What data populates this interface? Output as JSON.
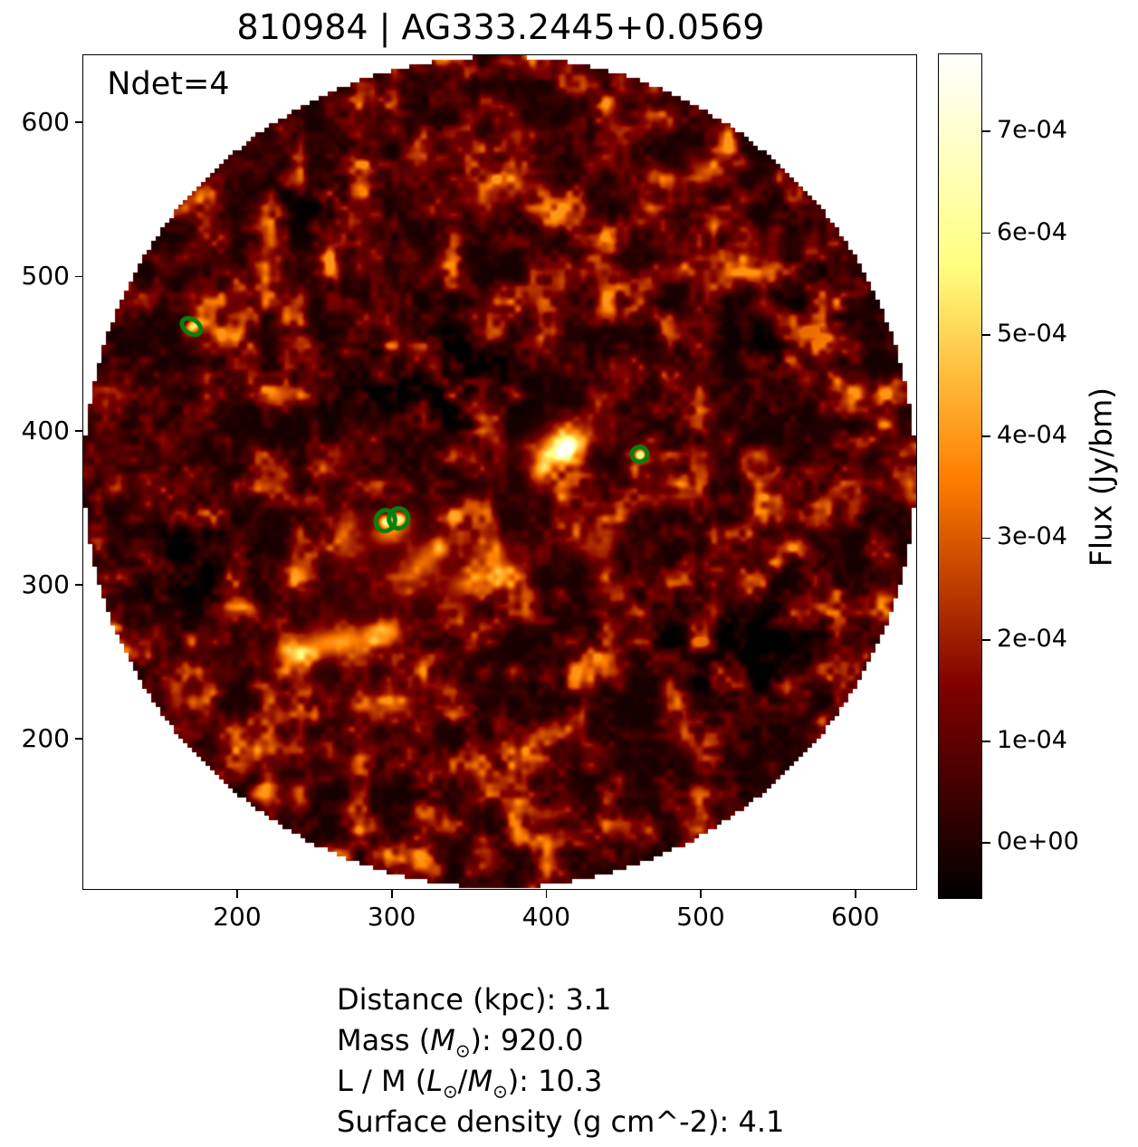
{
  "figure": {
    "background": "#ffffff",
    "text_color": "#000000"
  },
  "chart_data": {
    "type": "heatmap",
    "title": "810984 | AG333.2445+0.0569",
    "annotation": "Ndet=4",
    "xlabel": "",
    "ylabel": "",
    "xlim": [
      101,
      640
    ],
    "ylim": [
      102,
      643
    ],
    "xticks": [
      200,
      300,
      400,
      500,
      600
    ],
    "yticks": [
      200,
      300,
      400,
      500,
      600
    ],
    "grid": false,
    "colormap": "afmhot",
    "field_of_view": {
      "shape": "circle",
      "center_x": 370.5,
      "center_y": 372.5,
      "radius": 269,
      "outside_color": "#ffffff"
    },
    "colorbar": {
      "label": "Flux (Jy/bm)",
      "vmin": -5.5e-05,
      "vmax": 0.000775,
      "ticks": [
        {
          "value": 0,
          "label": "0e+00"
        },
        {
          "value": 0.0001,
          "label": "1e-04"
        },
        {
          "value": 0.0002,
          "label": "2e-04"
        },
        {
          "value": 0.0003,
          "label": "3e-04"
        },
        {
          "value": 0.0004,
          "label": "4e-04"
        },
        {
          "value": 0.0005,
          "label": "5e-04"
        },
        {
          "value": 0.0006,
          "label": "6e-04"
        },
        {
          "value": 0.0007,
          "label": "7e-04"
        }
      ]
    },
    "detections": {
      "count": 4,
      "color": "#0a7e0f",
      "ellipses": [
        {
          "x": 171,
          "y": 467,
          "rx": 6.8,
          "ry": 4.6,
          "angle": -35
        },
        {
          "x": 296.5,
          "y": 341,
          "rx": 6.2,
          "ry": 6.8,
          "angle": -15
        },
        {
          "x": 305,
          "y": 342.5,
          "rx": 6.2,
          "ry": 6.5,
          "angle": -15
        },
        {
          "x": 461,
          "y": 384,
          "rx": 5.0,
          "ry": 4.8,
          "angle": 0
        }
      ]
    },
    "bright_regions": [
      {
        "x": 410,
        "y": 392,
        "sx": 14,
        "sy": 8,
        "rot": -25,
        "a": 0.5
      },
      {
        "x": 414,
        "y": 389,
        "sx": 6,
        "sy": 4,
        "rot": -25,
        "a": 0.42
      },
      {
        "x": 398,
        "y": 377,
        "sx": 7,
        "sy": 4.5,
        "rot": -65,
        "a": 0.26
      },
      {
        "x": 301,
        "y": 335,
        "sx": 10,
        "sy": 6,
        "rot": -30,
        "a": 0.42
      },
      {
        "x": 296.5,
        "y": 341,
        "sx": 3,
        "sy": 2.6,
        "rot": 0,
        "a": 0.55
      },
      {
        "x": 305,
        "y": 342.5,
        "sx": 3,
        "sy": 2.6,
        "rot": 0,
        "a": 0.55
      },
      {
        "x": 171,
        "y": 467,
        "sx": 4.5,
        "sy": 2.8,
        "rot": -35,
        "a": 0.5
      },
      {
        "x": 461,
        "y": 384,
        "sx": 2.4,
        "sy": 2.1,
        "rot": 0,
        "a": 0.6
      },
      {
        "x": 322,
        "y": 316,
        "sx": 13,
        "sy": 8,
        "rot": -35,
        "a": 0.3
      },
      {
        "x": 347,
        "y": 301,
        "sx": 11,
        "sy": 7,
        "rot": -20,
        "a": 0.28
      },
      {
        "x": 262,
        "y": 262,
        "sx": 20,
        "sy": 7,
        "rot": -8,
        "a": 0.45
      },
      {
        "x": 237,
        "y": 254,
        "sx": 8,
        "sy": 6,
        "rot": 25,
        "a": 0.32
      },
      {
        "x": 297,
        "y": 268,
        "sx": 8,
        "sy": 5,
        "rot": 0,
        "a": 0.3
      },
      {
        "x": 374,
        "y": 311,
        "sx": 9,
        "sy": 6,
        "rot": 20,
        "a": 0.22
      },
      {
        "x": 430,
        "y": 326,
        "sx": 10,
        "sy": 7,
        "rot": 0,
        "a": 0.24
      },
      {
        "x": 356,
        "y": 549,
        "sx": 11,
        "sy": 6,
        "rot": 25,
        "a": 0.2
      },
      {
        "x": 391,
        "y": 558,
        "sx": 8,
        "sy": 5,
        "rot": 0,
        "a": 0.18
      },
      {
        "x": 503,
        "y": 571,
        "sx": 9,
        "sy": 5,
        "rot": 15,
        "a": 0.22
      },
      {
        "x": 272,
        "y": 330,
        "sx": 8,
        "sy": 12,
        "rot": 10,
        "a": 0.22
      },
      {
        "x": 300,
        "y": 295,
        "sx": 50,
        "sy": 32,
        "rot": -30,
        "a": 0.07
      },
      {
        "x": 545,
        "y": 477,
        "sx": 8,
        "sy": 5,
        "rot": 0,
        "a": 0.18
      }
    ],
    "dark_regions": [
      {
        "x": 330,
        "y": 432,
        "sx": 34,
        "sy": 22,
        "rot": -10,
        "a": -0.13
      },
      {
        "x": 522,
        "y": 256,
        "sx": 34,
        "sy": 24,
        "rot": 0,
        "a": -0.1
      },
      {
        "x": 562,
        "y": 466,
        "sx": 24,
        "sy": 17,
        "rot": 0,
        "a": -0.09
      },
      {
        "x": 170,
        "y": 316,
        "sx": 22,
        "sy": 20,
        "rot": 0,
        "a": -0.1
      },
      {
        "x": 255,
        "y": 552,
        "sx": 22,
        "sy": 16,
        "rot": 0,
        "a": -0.07
      }
    ],
    "noise": {
      "seed": 20240613,
      "octave_cells": [
        34,
        17,
        8
      ],
      "octave_weights": [
        0.45,
        0.33,
        0.22
      ],
      "floor": 0.045,
      "gain": 0.5,
      "offset": 0.18,
      "span": 0.64,
      "power": 2.1
    }
  },
  "stats": {
    "lines": [
      {
        "segments": [
          {
            "t": "Distance (kpc): 3.1"
          }
        ]
      },
      {
        "segments": [
          {
            "t": "Mass ("
          },
          {
            "t": "M",
            "i": true
          },
          {
            "t": "⊙",
            "sub": true
          },
          {
            "t": "): 920.0"
          }
        ]
      },
      {
        "segments": [
          {
            "t": "L / M ("
          },
          {
            "t": "L",
            "i": true
          },
          {
            "t": "⊙",
            "sub": true
          },
          {
            "t": "/"
          },
          {
            "t": "M",
            "i": true
          },
          {
            "t": "⊙",
            "sub": true
          },
          {
            "t": "): 10.3"
          }
        ]
      },
      {
        "segments": [
          {
            "t": "Surface density (g cm^-2): 4.1"
          }
        ]
      }
    ]
  }
}
